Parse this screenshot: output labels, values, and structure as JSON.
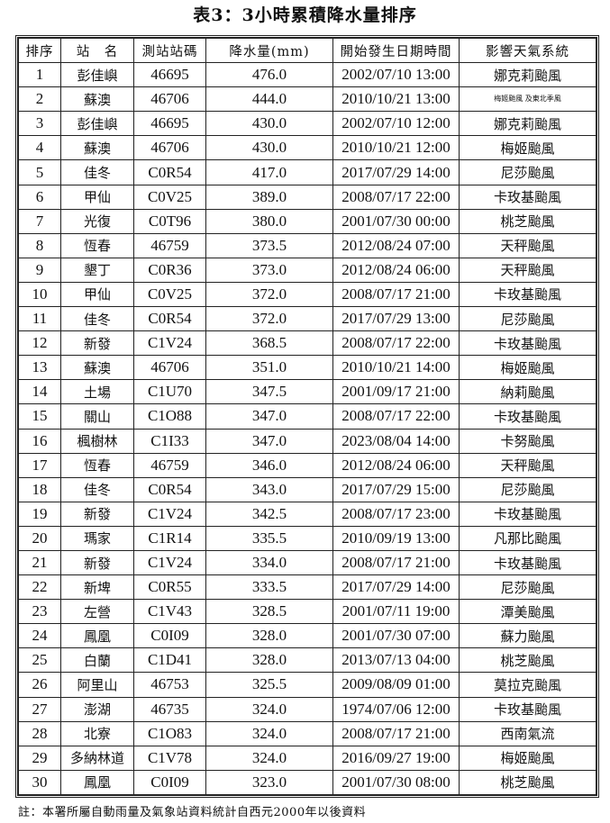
{
  "title": "表3：3小時累積降水量排序",
  "headers": [
    "排序",
    "站　名",
    "測站站碼",
    "降水量(mm)",
    "開始發生日期時間",
    "影響天氣系統"
  ],
  "rows": [
    [
      "1",
      "彭佳嶼",
      "46695",
      "476.0",
      "2002/07/10 13:00",
      "娜克莉颱風"
    ],
    [
      "2",
      "蘇澳",
      "46706",
      "444.0",
      "2010/10/21 13:00",
      "梅姬颱風 及東北季風"
    ],
    [
      "3",
      "彭佳嶼",
      "46695",
      "430.0",
      "2002/07/10 12:00",
      "娜克莉颱風"
    ],
    [
      "4",
      "蘇澳",
      "46706",
      "430.0",
      "2010/10/21 12:00",
      "梅姬颱風"
    ],
    [
      "5",
      "佳冬",
      "C0R54",
      "417.0",
      "2017/07/29 14:00",
      "尼莎颱風"
    ],
    [
      "6",
      "甲仙",
      "C0V25",
      "389.0",
      "2008/07/17 22:00",
      "卡玫基颱風"
    ],
    [
      "7",
      "光復",
      "C0T96",
      "380.0",
      "2001/07/30 00:00",
      "桃芝颱風"
    ],
    [
      "8",
      "恆春",
      "46759",
      "373.5",
      "2012/08/24 07:00",
      "天秤颱風"
    ],
    [
      "9",
      "墾丁",
      "C0R36",
      "373.0",
      "2012/08/24 06:00",
      "天秤颱風"
    ],
    [
      "10",
      "甲仙",
      "C0V25",
      "372.0",
      "2008/07/17 21:00",
      "卡玫基颱風"
    ],
    [
      "11",
      "佳冬",
      "C0R54",
      "372.0",
      "2017/07/29 13:00",
      "尼莎颱風"
    ],
    [
      "12",
      "新發",
      "C1V24",
      "368.5",
      "2008/07/17 22:00",
      "卡玫基颱風"
    ],
    [
      "13",
      "蘇澳",
      "46706",
      "351.0",
      "2010/10/21 14:00",
      "梅姬颱風"
    ],
    [
      "14",
      "土場",
      "C1U70",
      "347.5",
      "2001/09/17 21:00",
      "納莉颱風"
    ],
    [
      "15",
      "關山",
      "C1O88",
      "347.0",
      "2008/07/17 22:00",
      "卡玫基颱風"
    ],
    [
      "16",
      "楓樹林",
      "C1I33",
      "347.0",
      "2023/08/04 14:00",
      "卡努颱風"
    ],
    [
      "17",
      "恆春",
      "46759",
      "346.0",
      "2012/08/24 06:00",
      "天秤颱風"
    ],
    [
      "18",
      "佳冬",
      "C0R54",
      "343.0",
      "2017/07/29 15:00",
      "尼莎颱風"
    ],
    [
      "19",
      "新發",
      "C1V24",
      "342.5",
      "2008/07/17 23:00",
      "卡玫基颱風"
    ],
    [
      "20",
      "瑪家",
      "C1R14",
      "335.5",
      "2010/09/19 13:00",
      "凡那比颱風"
    ],
    [
      "21",
      "新發",
      "C1V24",
      "334.0",
      "2008/07/17 21:00",
      "卡玫基颱風"
    ],
    [
      "22",
      "新埤",
      "C0R55",
      "333.5",
      "2017/07/29 14:00",
      "尼莎颱風"
    ],
    [
      "23",
      "左營",
      "C1V43",
      "328.5",
      "2001/07/11 19:00",
      "潭美颱風"
    ],
    [
      "24",
      "鳳凰",
      "C0I09",
      "328.0",
      "2001/07/30 07:00",
      "蘇力颱風"
    ],
    [
      "25",
      "白蘭",
      "C1D41",
      "328.0",
      "2013/07/13 04:00",
      "桃芝颱風"
    ],
    [
      "26",
      "阿里山",
      "46753",
      "325.5",
      "2009/08/09 01:00",
      "莫拉克颱風"
    ],
    [
      "27",
      "澎湖",
      "46735",
      "324.0",
      "1974/07/06 12:00",
      "卡玫基颱風"
    ],
    [
      "28",
      "北寮",
      "C1O83",
      "324.0",
      "2008/07/17 21:00",
      "西南氣流"
    ],
    [
      "29",
      "多納林道",
      "C1V78",
      "324.0",
      "2016/09/27 19:00",
      "梅姬颱風"
    ],
    [
      "30",
      "鳳凰",
      "C0I09",
      "323.0",
      "2001/07/30 08:00",
      "桃芝颱風"
    ]
  ],
  "note": "註：本署所屬自動雨量及氣象站資料統計自西元2000年以後資料"
}
